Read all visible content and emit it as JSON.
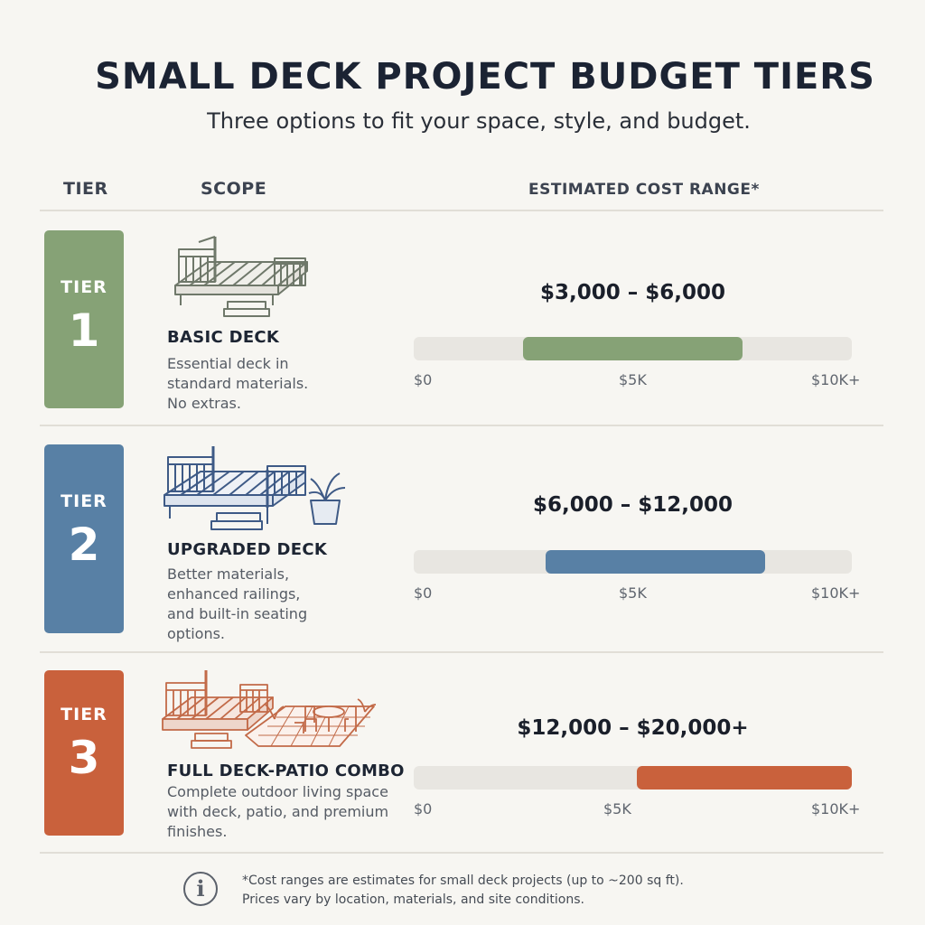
{
  "header": {
    "title": "SMALL DECK PROJECT BUDGET TIERS",
    "subtitle": "Three options to fit your space, style, and budget."
  },
  "columns": {
    "tier": "TIER",
    "scope": "SCOPE",
    "cost": "ESTIMATED COST RANGE*"
  },
  "tiers": [
    {
      "word": "TIER",
      "number": "1",
      "color": "#86a276",
      "icon": "basic-deck-illustration",
      "name": "BASIC DECK",
      "desc": [
        "Essential deck in",
        "standard materials.",
        "No extras."
      ],
      "cost": "$3,000 – $6,000",
      "range_fraction": [
        0.25,
        0.75
      ],
      "ticks": [
        "$0",
        "$5K",
        "$10K+"
      ]
    },
    {
      "word": "TIER",
      "number": "2",
      "color": "#5880a5",
      "icon": "upgraded-deck-with-plant-illustration",
      "name": "UPGRADED DECK",
      "desc": [
        "Better materials,",
        "enhanced railings,",
        "and built-in seating",
        "options."
      ],
      "cost": "$6,000 – $12,000",
      "range_fraction": [
        0.3,
        0.8
      ],
      "ticks": [
        "$0",
        "$5K",
        "$10K+"
      ]
    },
    {
      "word": "TIER",
      "number": "3",
      "color": "#c9613c",
      "icon": "deck-patio-combo-illustration",
      "name": "FULL DECK-PATIO COMBO",
      "desc": [
        "Complete outdoor living space",
        "with deck, patio, and premium",
        "finishes."
      ],
      "cost": "$12,000 – $20,000+",
      "range_fraction": [
        0.51,
        1.0
      ],
      "ticks": [
        "$0",
        "$5K",
        "$10K+"
      ]
    }
  ],
  "footnote": {
    "icon": "info-icon",
    "icon_glyph": "i",
    "lines": [
      "*Cost ranges are estimates for small deck projects (up to ~200 sq ft).",
      "Prices vary by location, materials, and site conditions."
    ]
  }
}
